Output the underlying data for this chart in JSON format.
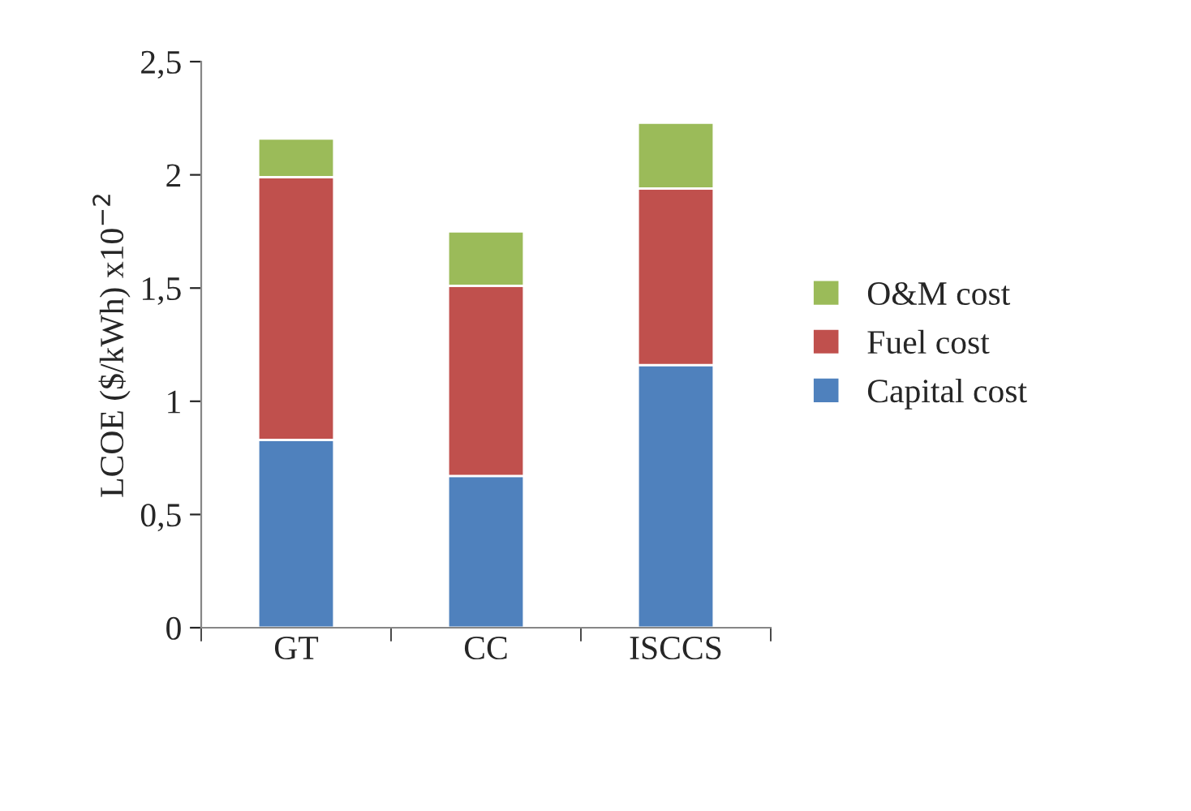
{
  "chart_data": {
    "type": "bar",
    "stacked": true,
    "ylabel": "LCOE ($/kWh) x10$^{−2}$",
    "categories": [
      "GT",
      "CC",
      "ISCCS"
    ],
    "series": [
      {
        "name": "Capital cost",
        "color": "#4f81bd",
        "values": [
          0.83,
          0.67,
          1.16
        ]
      },
      {
        "name": "Fuel cost",
        "color": "#c0504d",
        "values": [
          1.16,
          0.84,
          0.78
        ]
      },
      {
        "name": "O&M cost",
        "color": "#9bbb59",
        "values": [
          0.17,
          0.24,
          0.29
        ]
      }
    ],
    "ylim": [
      0,
      2.5
    ],
    "yticks": [
      {
        "value": 0,
        "label": "0"
      },
      {
        "value": 0.5,
        "label": "0,5"
      },
      {
        "value": 1,
        "label": "1"
      },
      {
        "value": 1.5,
        "label": "1,5"
      },
      {
        "value": 2,
        "label": "2"
      },
      {
        "value": 2.5,
        "label": "2,5"
      }
    ],
    "grid": false,
    "legend": "right"
  }
}
